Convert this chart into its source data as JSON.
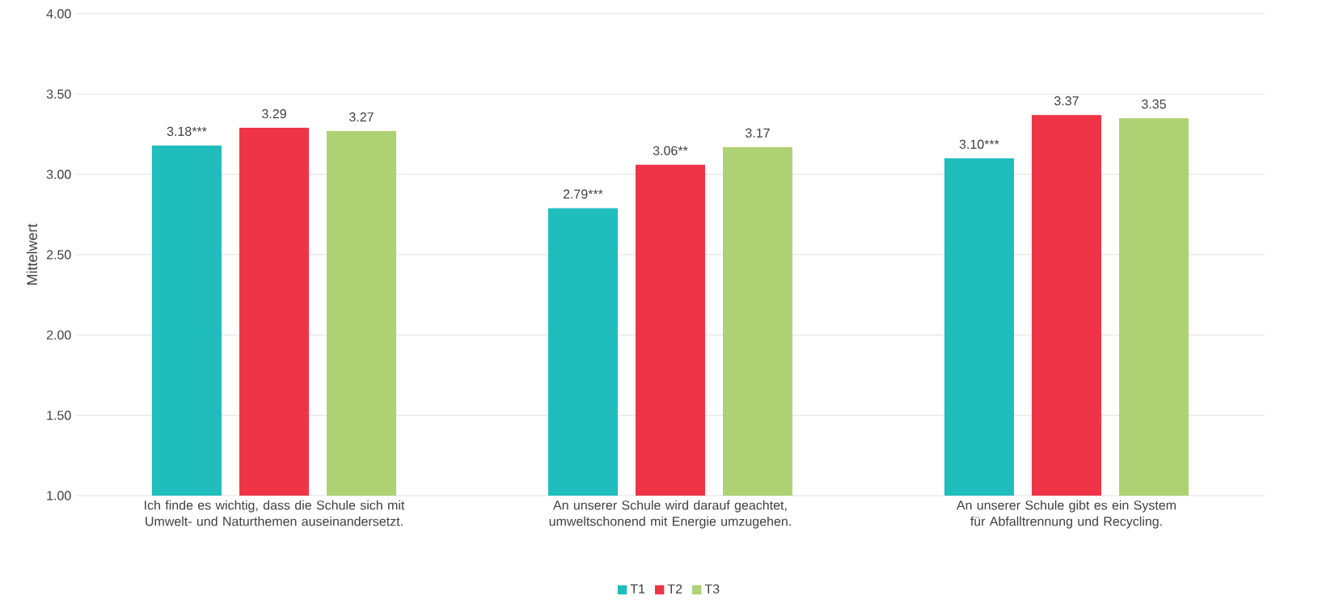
{
  "chart_data": {
    "type": "bar",
    "ylabel": "Mittelwert",
    "categories": [
      "Ich finde es wichtig, dass die Schule sich mit Umwelt- und Naturthemen auseinandersetzt.",
      "An unserer Schule wird darauf geachtet, umweltschonend mit Energie umzugehen.",
      "An unserer Schule gibt es ein System für Abfalltrennung und Recycling."
    ],
    "series": [
      {
        "name": "T1",
        "color": "#20bdbd",
        "values": [
          3.18,
          2.79,
          3.1
        ],
        "value_labels": [
          "3.18***",
          "2.79***",
          "3.10***"
        ]
      },
      {
        "name": "T2",
        "color": "#ee3446",
        "values": [
          3.29,
          3.06,
          3.37
        ],
        "value_labels": [
          "3.29",
          "3.06**",
          "3.37"
        ]
      },
      {
        "name": "T3",
        "color": "#aed273",
        "values": [
          3.27,
          3.17,
          3.35
        ],
        "value_labels": [
          "3.27",
          "3.17",
          "3.35"
        ]
      }
    ],
    "ylim": [
      1,
      4
    ],
    "yticks": [
      {
        "value": 1,
        "label": "1.00"
      },
      {
        "value": 1.5,
        "label": "1.50"
      },
      {
        "value": 2,
        "label": "2.00"
      },
      {
        "value": 2.5,
        "label": "2.50"
      },
      {
        "value": 3,
        "label": "3.00"
      },
      {
        "value": 3.5,
        "label": "3.50"
      },
      {
        "value": 4,
        "label": "4.00"
      }
    ],
    "grid": "y",
    "legend": "bottom"
  }
}
